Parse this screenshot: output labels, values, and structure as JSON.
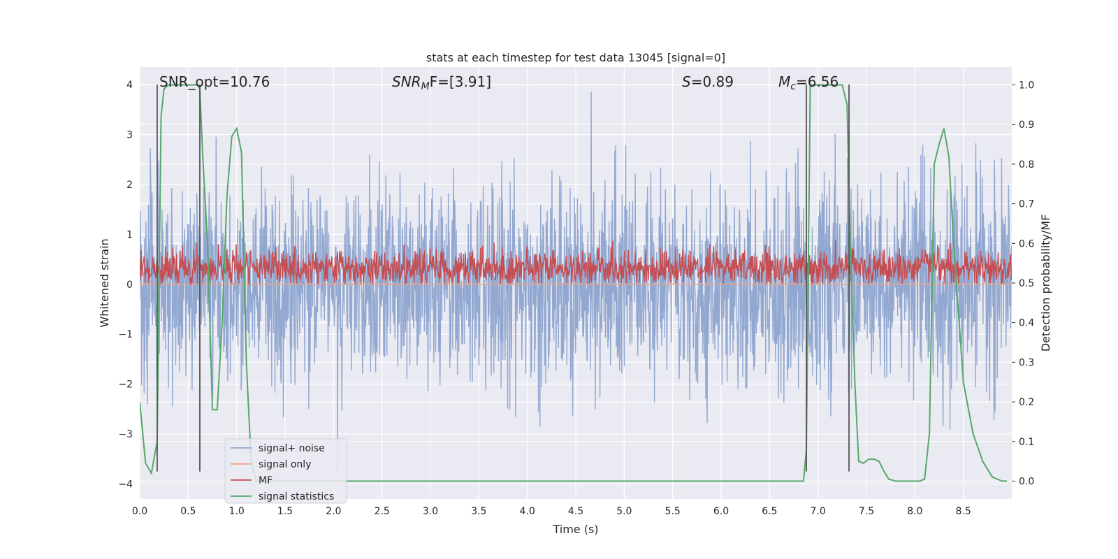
{
  "chart_data": {
    "type": "line",
    "title": "stats at each timestep for test data 13045 [signal=0]",
    "xlabel": "Time (s)",
    "ylabel": "Whitened strain",
    "y2label": "Detection probability/MF",
    "xlim": [
      0,
      9.0
    ],
    "ylim": [
      -4.3,
      4.35
    ],
    "y2lim": [
      -0.045,
      1.045
    ],
    "xticks": [
      0.0,
      0.5,
      1.0,
      1.5,
      2.0,
      2.5,
      3.0,
      3.5,
      4.0,
      4.5,
      5.0,
      5.5,
      6.0,
      6.5,
      7.0,
      7.5,
      8.0,
      8.5
    ],
    "xtick_labels": [
      "0.0",
      "0.5",
      "1.0",
      "1.5",
      "2.0",
      "2.5",
      "3.0",
      "3.5",
      "4.0",
      "4.5",
      "5.0",
      "5.5",
      "6.0",
      "6.5",
      "7.0",
      "7.5",
      "8.0",
      "8.5"
    ],
    "yticks": [
      -4,
      -3,
      -2,
      -1,
      0,
      1,
      2,
      3,
      4
    ],
    "ytick_labels": [
      "−4",
      "−3",
      "−2",
      "−1",
      "0",
      "1",
      "2",
      "3",
      "4"
    ],
    "y2ticks": [
      0.0,
      0.1,
      0.2,
      0.3,
      0.4,
      0.5,
      0.6,
      0.7,
      0.8,
      0.9,
      1.0
    ],
    "y2tick_labels": [
      "0.0",
      "0.1",
      "0.2",
      "0.3",
      "0.4",
      "0.5",
      "0.6",
      "0.7",
      "0.8",
      "0.9",
      "1.0"
    ],
    "grid": true,
    "legend_position": "lower-left",
    "annotations": {
      "snr_opt": "SNR_opt=10.76",
      "snr_mf_main": "SNR",
      "snr_mf_sub": "M",
      "snr_mf_rest": "F=[3.91]",
      "s_main": "S",
      "s_rest": "=0.89",
      "mc_main": "M",
      "mc_sub": "c",
      "mc_rest": "=6.56"
    },
    "vertical_lines": [
      0.18,
      0.62,
      6.88,
      7.32
    ],
    "vertical_line_range": [
      -3.75,
      4.0
    ],
    "series": [
      {
        "name": "signal+ noise",
        "color": "#92a8d1",
        "axis": "left",
        "kind": "noise",
        "noise_profile": {
          "mean": 0.0,
          "std": 1.0,
          "spike_max": 4.0,
          "spike_min": -3.8
        }
      },
      {
        "name": "signal only",
        "color": "#eea47f",
        "axis": "left",
        "x": [
          0.0,
          9.0
        ],
        "y": [
          0.0,
          0.0
        ]
      },
      {
        "name": "MF",
        "color": "#c44e52",
        "axis": "left",
        "kind": "noise",
        "noise_profile": {
          "mean": 0.33,
          "std": 0.18,
          "min": 0.0,
          "max": 1.0
        }
      },
      {
        "name": "signal statistics",
        "color": "#55a868",
        "axis": "right",
        "x": [
          0.0,
          0.06,
          0.12,
          0.18,
          0.22,
          0.25,
          0.3,
          0.35,
          0.4,
          0.45,
          0.5,
          0.55,
          0.6,
          0.62,
          0.65,
          0.7,
          0.75,
          0.8,
          0.85,
          0.9,
          0.95,
          1.0,
          1.05,
          1.1,
          1.15,
          1.2,
          1.25,
          1.3,
          6.8,
          6.85,
          6.88,
          6.92,
          6.95,
          7.0,
          7.1,
          7.2,
          7.25,
          7.3,
          7.33,
          7.38,
          7.42,
          7.47,
          7.52,
          7.58,
          7.63,
          7.68,
          7.73,
          7.8,
          7.88,
          7.95,
          8.05,
          8.1,
          8.15,
          8.2,
          8.25,
          8.3,
          8.35,
          8.4,
          8.5,
          8.6,
          8.7,
          8.8,
          8.9,
          8.95
        ],
        "y": [
          0.2,
          0.045,
          0.02,
          0.1,
          0.92,
          0.99,
          1.0,
          1.0,
          1.0,
          1.0,
          1.0,
          1.0,
          1.0,
          0.99,
          0.82,
          0.6,
          0.18,
          0.18,
          0.4,
          0.72,
          0.87,
          0.89,
          0.83,
          0.3,
          0.05,
          0.0,
          0.0,
          0.0,
          0.0,
          0.0,
          0.08,
          1.0,
          1.0,
          1.0,
          1.0,
          1.0,
          1.0,
          0.95,
          0.62,
          0.25,
          0.05,
          0.045,
          0.055,
          0.055,
          0.05,
          0.025,
          0.005,
          0.0,
          0.0,
          0.0,
          0.0,
          0.005,
          0.12,
          0.8,
          0.85,
          0.89,
          0.82,
          0.6,
          0.25,
          0.12,
          0.05,
          0.01,
          0.0,
          0.0
        ]
      }
    ]
  }
}
